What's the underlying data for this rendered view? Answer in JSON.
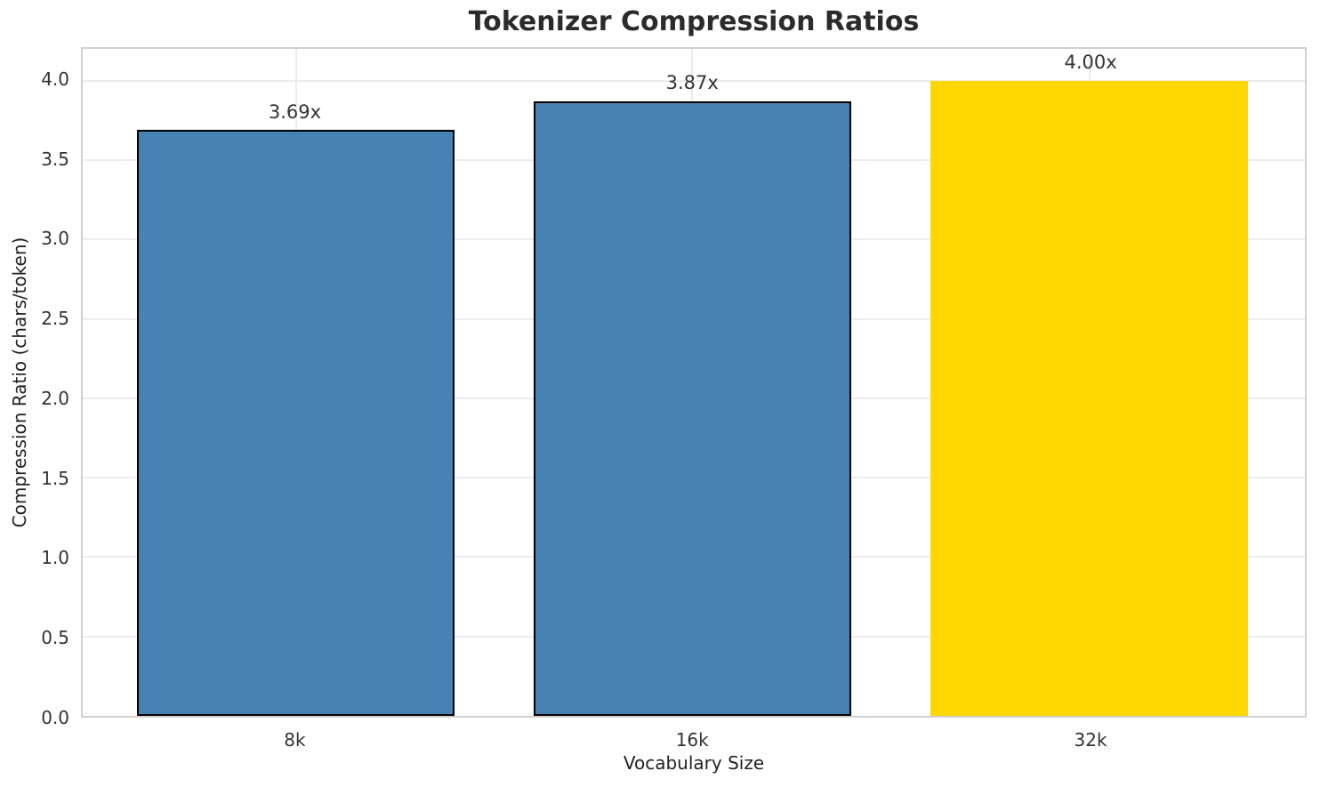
{
  "chart_data": {
    "type": "bar",
    "title": "Tokenizer Compression Ratios",
    "xlabel": "Vocabulary Size",
    "ylabel": "Compression Ratio (chars/token)",
    "categories": [
      "8k",
      "16k",
      "32k"
    ],
    "values": [
      3.69,
      3.87,
      4.0
    ],
    "bar_labels": [
      "3.69x",
      "3.87x",
      "4.00x"
    ],
    "bar_colors": [
      "#4682B4",
      "#4682B4",
      "#FFD700"
    ],
    "bar_edge_colors": [
      "#000000",
      "#000000",
      "none"
    ],
    "yticks": [
      0.0,
      0.5,
      1.0,
      1.5,
      2.0,
      2.5,
      3.0,
      3.5,
      4.0
    ],
    "ytick_labels": [
      "0.0",
      "0.5",
      "1.0",
      "1.5",
      "2.0",
      "2.5",
      "3.0",
      "3.5",
      "4.0"
    ],
    "ylim": [
      0,
      4.2
    ],
    "grid": true,
    "legend": "none",
    "colors": {
      "grid": "#ececec",
      "spine": "#d0d0d0",
      "tick_text": "#333333",
      "title_text": "#2b2b2b"
    }
  }
}
